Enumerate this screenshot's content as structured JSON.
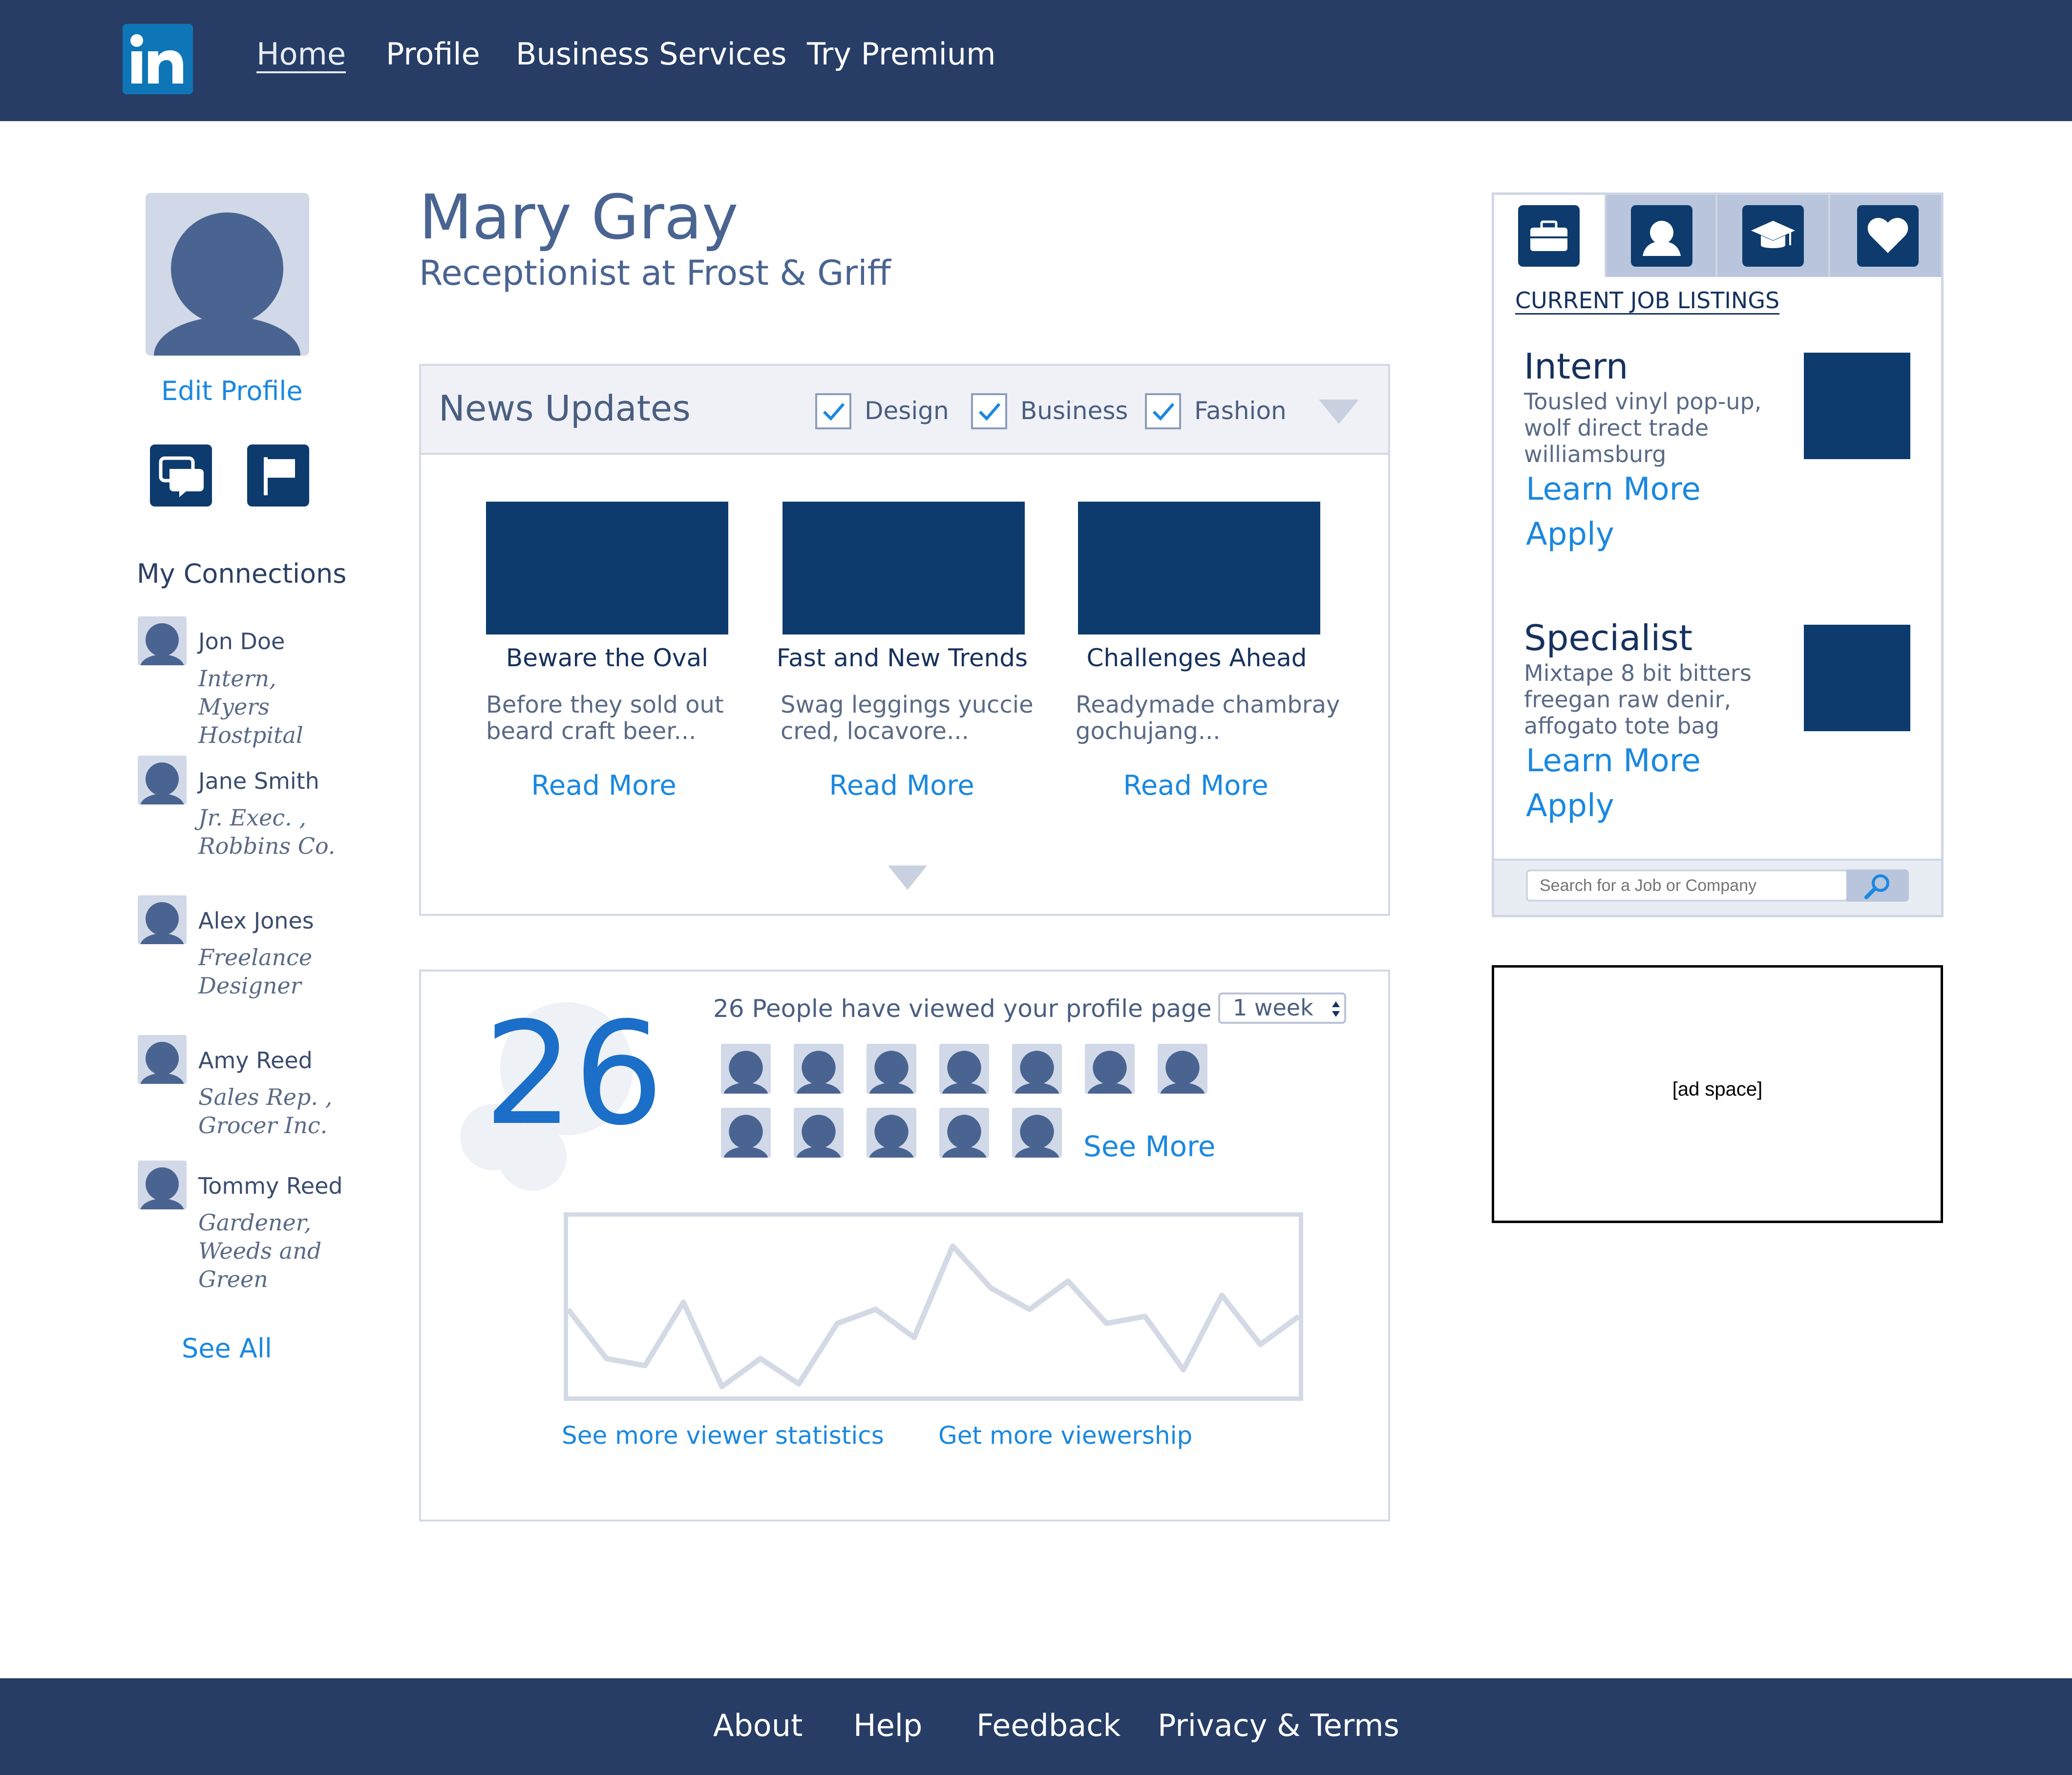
{
  "nav": {
    "logo_text": "in",
    "links": [
      "Home",
      "Profile",
      "Business Services",
      "Try Premium"
    ]
  },
  "left": {
    "edit_profile": "Edit Profile",
    "connections_heading": "My Connections",
    "connections": [
      {
        "name": "Jon Doe",
        "role_line1": "Intern,",
        "role_line2": "Myers Hostpital",
        "role_line3": ""
      },
      {
        "name": "Jane Smith",
        "role_line1": "Jr. Exec. ,",
        "role_line2": "Robbins Co.",
        "role_line3": ""
      },
      {
        "name": "Alex Jones",
        "role_line1": "Freelance",
        "role_line2": "Designer",
        "role_line3": ""
      },
      {
        "name": "Amy Reed",
        "role_line1": "Sales Rep. ,",
        "role_line2": "Grocer Inc.",
        "role_line3": ""
      },
      {
        "name": "Tommy Reed",
        "role_line1": "Gardener,",
        "role_line2": "Weeds and",
        "role_line3": "Green"
      }
    ],
    "see_all": "See All"
  },
  "profile": {
    "name": "Mary Gray",
    "title": "Receptionist at Frost & Griff"
  },
  "news": {
    "heading": "News Updates",
    "filters": [
      {
        "label": "Design",
        "checked": true
      },
      {
        "label": "Business",
        "checked": true
      },
      {
        "label": "Fashion",
        "checked": true
      }
    ],
    "articles": [
      {
        "title": "Beware the Oval",
        "desc_line1": "Before they sold out",
        "desc_line2": "beard craft beer...",
        "link": "Read More"
      },
      {
        "title": "Fast and New Trends",
        "desc_line1": "Swag leggings yuccie",
        "desc_line2": "cred, locavore...",
        "link": "Read More"
      },
      {
        "title": "Challenges Ahead",
        "desc_line1": "Readymade chambray",
        "desc_line2": "gochujang...",
        "link": "Read More"
      }
    ]
  },
  "views": {
    "count": "26",
    "summary": "26 People have viewed your profile page in",
    "period": "1 week",
    "see_more": "See More",
    "stats_link": "See more viewer statistics",
    "viewership_link": "Get more viewership",
    "sparkline": [
      55,
      20,
      15,
      60,
      0,
      20,
      2,
      45,
      55,
      35,
      100,
      70,
      55,
      75,
      45,
      50,
      12,
      65,
      30,
      50
    ]
  },
  "jobs": {
    "tabs": [
      "briefcase-icon",
      "person-icon",
      "graduation-cap-icon",
      "heart-icon"
    ],
    "heading": "CURRENT JOB LISTINGS",
    "listings": [
      {
        "title": "Intern",
        "desc_line1": "Tousled vinyl pop-up,",
        "desc_line2": "wolf direct trade",
        "desc_line3": "williamsburg",
        "learn_more": "Learn More",
        "apply": "Apply"
      },
      {
        "title": "Specialist",
        "desc_line1": "Mixtape 8 bit bitters",
        "desc_line2": "freegan raw denir,",
        "desc_line3": "affogato tote bag",
        "learn_more": "Learn More",
        "apply": "Apply"
      }
    ],
    "search_placeholder": "Search for a Job or Company"
  },
  "ad": {
    "text": "[ad space]"
  },
  "footer": {
    "links": [
      "About",
      "Help",
      "Feedback",
      "Privacy & Terms"
    ]
  },
  "colors": {
    "nav_bg": "#273d66",
    "accent_blue": "#1a88e0",
    "dark_navy": "#0d3b6d",
    "logo_blue": "#0e76b7"
  }
}
